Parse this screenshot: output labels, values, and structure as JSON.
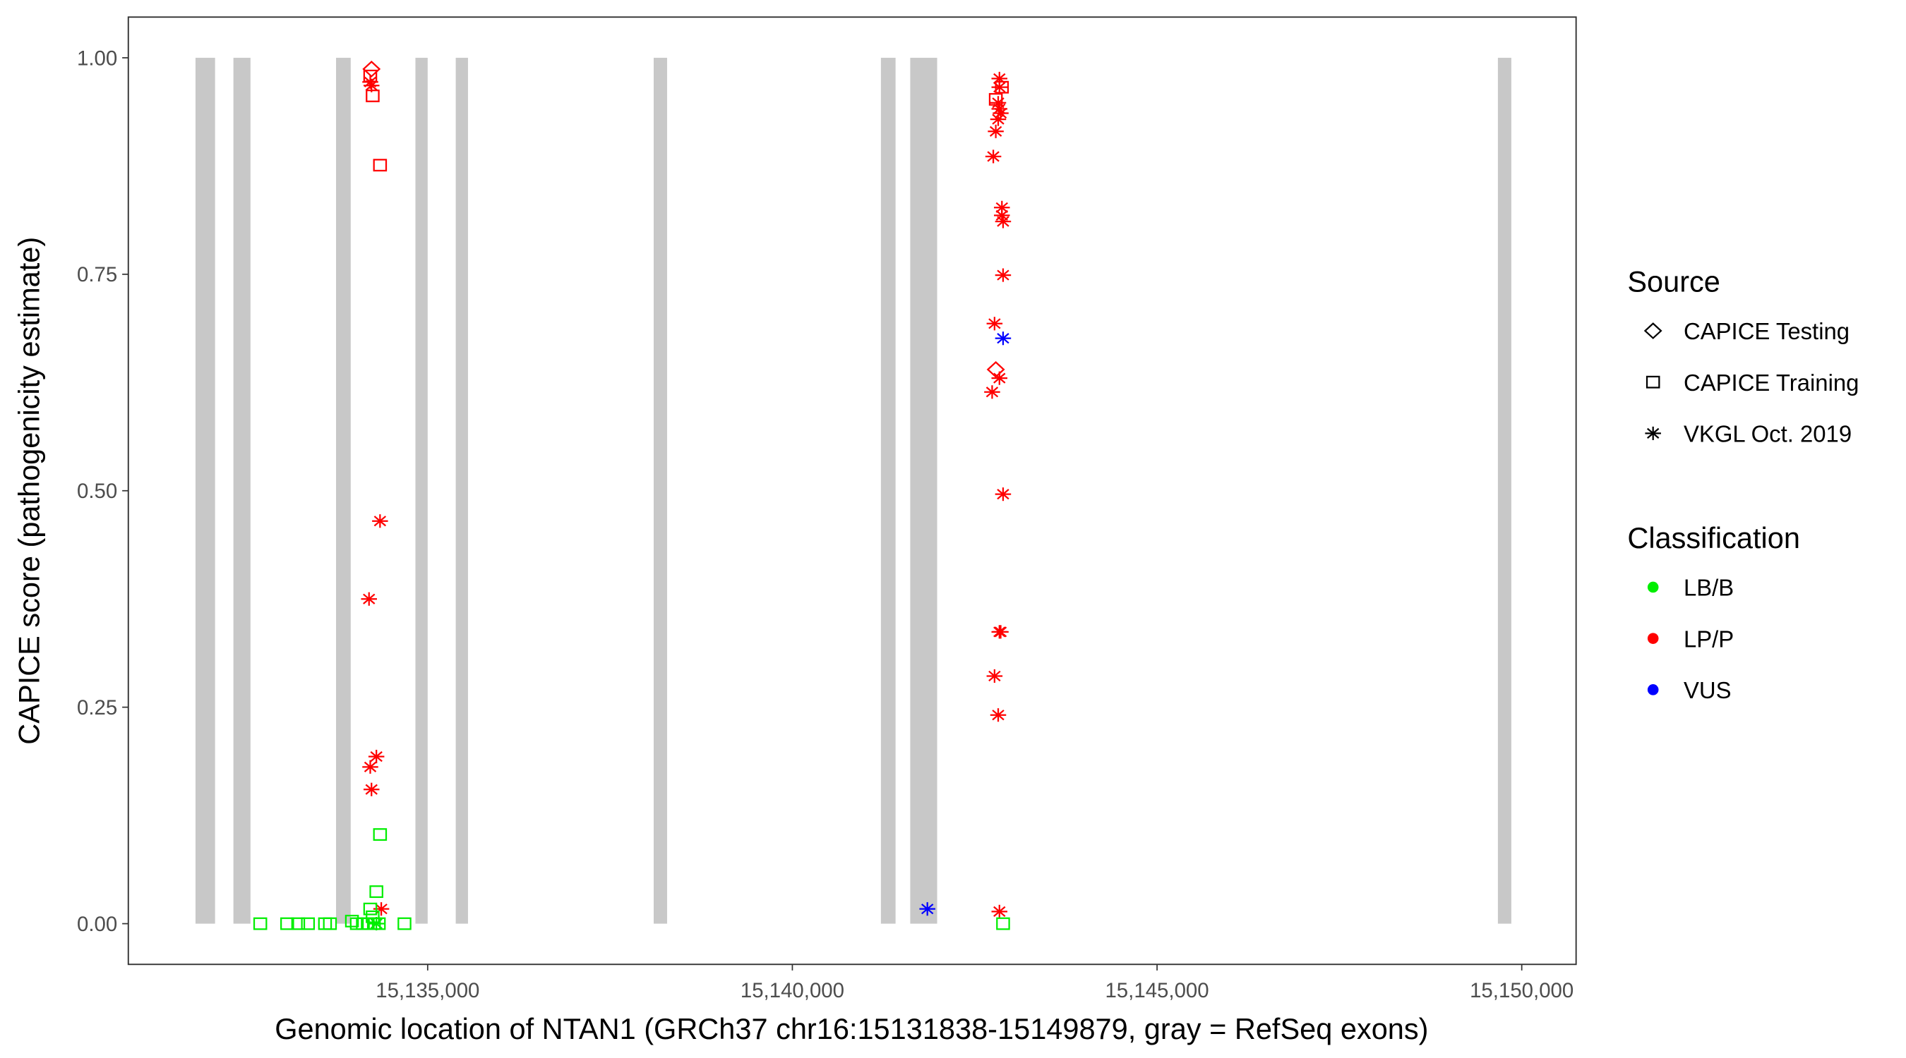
{
  "chart_data": {
    "type": "scatter",
    "title": "",
    "xlabel": "Genomic location of NTAN1 (GRCh37 chr16:15131838-15149879, gray = RefSeq exons)",
    "ylabel": "CAPICE score (pathogenicity estimate)",
    "xlim": [
      15130896,
      15150745
    ],
    "ylim": [
      -0.047,
      1.047
    ],
    "x_ticks": [
      15135000,
      15140000,
      15145000,
      15150000
    ],
    "x_tick_labels": [
      "15,135,000",
      "15,140,000",
      "15,145,000",
      "15,150,000"
    ],
    "y_ticks": [
      0,
      0.25,
      0.5,
      0.75,
      1.0
    ],
    "y_tick_labels": [
      "0.00",
      "0.25",
      "0.50",
      "0.75",
      "1.00"
    ],
    "grid": false,
    "exons": [
      [
        15131817,
        15132085
      ],
      [
        15132337,
        15132571
      ],
      [
        15133744,
        15133945
      ],
      [
        15134832,
        15135000
      ],
      [
        15135385,
        15135553
      ],
      [
        15138099,
        15138283
      ],
      [
        15141214,
        15141415
      ],
      [
        15141616,
        15141985
      ],
      [
        15149673,
        15149857
      ]
    ],
    "exon_color": "#c8c8c8",
    "legend": {
      "placement": "right",
      "source_title": "Source",
      "source_items": [
        {
          "label": "CAPICE Testing",
          "shape": "diamond"
        },
        {
          "label": "CAPICE Training",
          "shape": "square"
        },
        {
          "label": "VKGL Oct. 2019",
          "shape": "asterisk"
        }
      ],
      "class_title": "Classification",
      "class_items": [
        {
          "label": "LB/B",
          "color": "#00ee00"
        },
        {
          "label": "LP/P",
          "color": "#ff0000"
        },
        {
          "label": "VUS",
          "color": "#0000ff"
        }
      ]
    },
    "points": [
      {
        "x": 15134230,
        "y": 0.987,
        "source": "diamond",
        "class": "LP/P"
      },
      {
        "x": 15134213,
        "y": 0.979,
        "source": "square",
        "class": "LP/P"
      },
      {
        "x": 15134246,
        "y": 0.956,
        "source": "square",
        "class": "LP/P"
      },
      {
        "x": 15134347,
        "y": 0.876,
        "source": "square",
        "class": "LP/P"
      },
      {
        "x": 15134213,
        "y": 0.972,
        "source": "asterisk",
        "class": "LP/P"
      },
      {
        "x": 15134230,
        "y": 0.968,
        "source": "asterisk",
        "class": "LP/P"
      },
      {
        "x": 15134347,
        "y": 0.465,
        "source": "asterisk",
        "class": "LP/P"
      },
      {
        "x": 15134196,
        "y": 0.375,
        "source": "asterisk",
        "class": "LP/P"
      },
      {
        "x": 15134297,
        "y": 0.193,
        "source": "asterisk",
        "class": "LP/P"
      },
      {
        "x": 15134213,
        "y": 0.181,
        "source": "asterisk",
        "class": "LP/P"
      },
      {
        "x": 15134230,
        "y": 0.155,
        "source": "asterisk",
        "class": "LP/P"
      },
      {
        "x": 15134364,
        "y": 0.017,
        "source": "asterisk",
        "class": "LP/P"
      },
      {
        "x": 15134347,
        "y": 0.103,
        "source": "square",
        "class": "LB/B"
      },
      {
        "x": 15134297,
        "y": 0.037,
        "source": "square",
        "class": "LB/B"
      },
      {
        "x": 15134213,
        "y": 0.017,
        "source": "square",
        "class": "LB/B"
      },
      {
        "x": 15134246,
        "y": 0.008,
        "source": "square",
        "class": "LB/B"
      },
      {
        "x": 15132705,
        "y": 0.0,
        "source": "square",
        "class": "LB/B"
      },
      {
        "x": 15133074,
        "y": 0.0,
        "source": "square",
        "class": "LB/B"
      },
      {
        "x": 15133225,
        "y": 0.0,
        "source": "square",
        "class": "LB/B"
      },
      {
        "x": 15133359,
        "y": 0.0,
        "source": "square",
        "class": "LB/B"
      },
      {
        "x": 15133593,
        "y": 0.0,
        "source": "square",
        "class": "LB/B"
      },
      {
        "x": 15133660,
        "y": 0.0,
        "source": "square",
        "class": "LB/B"
      },
      {
        "x": 15133962,
        "y": 0.003,
        "source": "square",
        "class": "LB/B"
      },
      {
        "x": 15134029,
        "y": 0.0,
        "source": "square",
        "class": "LB/B"
      },
      {
        "x": 15134112,
        "y": 0.0,
        "source": "square",
        "class": "LB/B"
      },
      {
        "x": 15134179,
        "y": 0.0,
        "source": "square",
        "class": "LB/B"
      },
      {
        "x": 15134263,
        "y": 0.0,
        "source": "square",
        "class": "LB/B"
      },
      {
        "x": 15134330,
        "y": 0.0,
        "source": "square",
        "class": "LB/B"
      },
      {
        "x": 15134682,
        "y": 0.0,
        "source": "square",
        "class": "LB/B"
      },
      {
        "x": 15134297,
        "y": 0.0,
        "source": "asterisk",
        "class": "LB/B"
      },
      {
        "x": 15142839,
        "y": 0.976,
        "source": "asterisk",
        "class": "LP/P"
      },
      {
        "x": 15142839,
        "y": 0.966,
        "source": "asterisk",
        "class": "LP/P"
      },
      {
        "x": 15142873,
        "y": 0.966,
        "source": "square",
        "class": "LP/P"
      },
      {
        "x": 15142789,
        "y": 0.952,
        "source": "square",
        "class": "LP/P"
      },
      {
        "x": 15142822,
        "y": 0.948,
        "source": "asterisk",
        "class": "LP/P"
      },
      {
        "x": 15142839,
        "y": 0.941,
        "source": "asterisk",
        "class": "LP/P"
      },
      {
        "x": 15142856,
        "y": 0.936,
        "source": "asterisk",
        "class": "LP/P"
      },
      {
        "x": 15142822,
        "y": 0.929,
        "source": "asterisk",
        "class": "LP/P"
      },
      {
        "x": 15142789,
        "y": 0.915,
        "source": "asterisk",
        "class": "LP/P"
      },
      {
        "x": 15142755,
        "y": 0.886,
        "source": "asterisk",
        "class": "LP/P"
      },
      {
        "x": 15142873,
        "y": 0.827,
        "source": "asterisk",
        "class": "LP/P"
      },
      {
        "x": 15142873,
        "y": 0.818,
        "source": "asterisk",
        "class": "LP/P"
      },
      {
        "x": 15142889,
        "y": 0.811,
        "source": "asterisk",
        "class": "LP/P"
      },
      {
        "x": 15142889,
        "y": 0.749,
        "source": "asterisk",
        "class": "LP/P"
      },
      {
        "x": 15142772,
        "y": 0.693,
        "source": "asterisk",
        "class": "LP/P"
      },
      {
        "x": 15142889,
        "y": 0.676,
        "source": "asterisk",
        "class": "VUS"
      },
      {
        "x": 15142789,
        "y": 0.64,
        "source": "diamond",
        "class": "LP/P"
      },
      {
        "x": 15142839,
        "y": 0.63,
        "source": "asterisk",
        "class": "LP/P"
      },
      {
        "x": 15142739,
        "y": 0.614,
        "source": "asterisk",
        "class": "LP/P"
      },
      {
        "x": 15142889,
        "y": 0.496,
        "source": "asterisk",
        "class": "LP/P"
      },
      {
        "x": 15142839,
        "y": 0.337,
        "source": "asterisk",
        "class": "LP/P"
      },
      {
        "x": 15142856,
        "y": 0.337,
        "source": "asterisk",
        "class": "LP/P"
      },
      {
        "x": 15142772,
        "y": 0.286,
        "source": "asterisk",
        "class": "LP/P"
      },
      {
        "x": 15142822,
        "y": 0.241,
        "source": "asterisk",
        "class": "LP/P"
      },
      {
        "x": 15142839,
        "y": 0.014,
        "source": "asterisk",
        "class": "LP/P"
      },
      {
        "x": 15142889,
        "y": 0.0,
        "source": "square",
        "class": "LB/B"
      },
      {
        "x": 15141851,
        "y": 0.017,
        "source": "asterisk",
        "class": "VUS"
      }
    ]
  }
}
